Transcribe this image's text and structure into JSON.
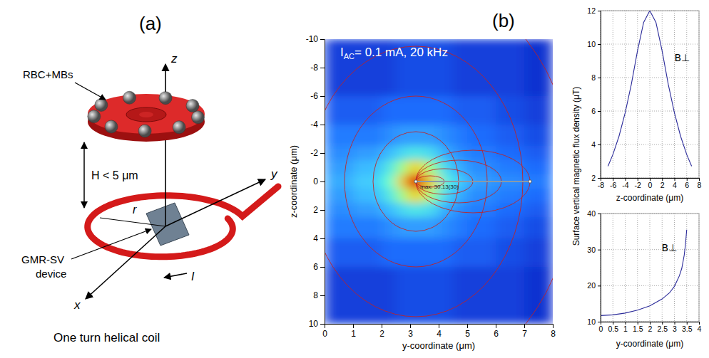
{
  "panel_labels": [
    "(a)",
    "(b)"
  ],
  "diagram": {
    "labels": {
      "cell": "RBC+MBs",
      "height": "H < 5 μm",
      "device": [
        "GMR-SV",
        "device"
      ],
      "caption": "One turn helical coil",
      "axes": [
        "x",
        "y",
        "z"
      ],
      "radius": "r",
      "current": "I"
    }
  },
  "chart_data": [
    {
      "type": "heatmap",
      "annotation": {
        "text": "I",
        "subscript": "AC",
        "rest": "= 0.1 mA, 20 kHz"
      },
      "max_label": "max: 30.13(30)",
      "xlabel": "y-coordinate (μm)",
      "ylabel": "z-coordinate (μm)",
      "xlim": [
        0,
        8
      ],
      "ylim": [
        10,
        -10
      ],
      "xticks": [
        0,
        1,
        2,
        3,
        4,
        5,
        6,
        7,
        8
      ],
      "yticks": [
        -10,
        -8,
        -6,
        -4,
        -2,
        0,
        2,
        4,
        6,
        8,
        10
      ],
      "x_edges": [
        0,
        1,
        2,
        2.5,
        2.9,
        3.5,
        4,
        4.5,
        5,
        6,
        7,
        8
      ],
      "y_edges": [
        -10,
        -6,
        -4,
        -2.5,
        -1.5,
        -0.5,
        0.5,
        1.5,
        2.5,
        4,
        6,
        10
      ],
      "cells": [
        [
          3,
          3,
          3,
          4,
          4,
          4,
          4,
          3,
          3,
          3,
          2
        ],
        [
          5,
          5,
          6,
          6,
          6,
          6,
          6,
          5,
          5,
          4,
          3
        ],
        [
          7,
          7,
          8,
          9,
          9,
          9,
          8,
          7,
          6,
          5,
          4
        ],
        [
          8,
          9,
          11,
          13,
          14,
          13,
          10,
          8,
          7,
          6,
          5
        ],
        [
          9,
          11,
          14,
          18,
          22,
          18,
          13,
          10,
          8,
          7,
          6
        ],
        [
          10,
          12,
          16,
          22,
          30,
          22,
          15,
          12,
          9,
          8,
          7
        ],
        [
          9,
          11,
          14,
          18,
          22,
          18,
          13,
          10,
          8,
          7,
          6
        ],
        [
          8,
          9,
          11,
          13,
          14,
          13,
          10,
          8,
          7,
          6,
          5
        ],
        [
          7,
          7,
          8,
          9,
          9,
          9,
          8,
          7,
          6,
          5,
          4
        ],
        [
          5,
          5,
          6,
          6,
          6,
          6,
          6,
          5,
          5,
          4,
          3
        ],
        [
          3,
          3,
          3,
          4,
          4,
          4,
          4,
          3,
          3,
          3,
          2
        ]
      ]
    },
    {
      "type": "line",
      "xlabel": "z-coordinate (μm)",
      "x": [
        -6.8,
        -6,
        -5,
        -4,
        -3,
        -2,
        -1,
        0,
        1,
        2,
        3,
        4,
        5,
        6,
        6.8
      ],
      "series": [
        {
          "name": "B⊥",
          "color": "#2b2b9a",
          "values": [
            2.7,
            3.4,
            4.5,
            5.9,
            7.6,
            9.6,
            11.3,
            12,
            11.3,
            9.6,
            7.6,
            5.9,
            4.5,
            3.4,
            2.7
          ]
        }
      ],
      "xlim": [
        -8,
        8
      ],
      "ylim": [
        2,
        12
      ],
      "xticks": [
        -8,
        -6,
        -4,
        -2,
        0,
        2,
        4,
        6,
        8
      ],
      "yticks": [
        2,
        4,
        6,
        8,
        10,
        12
      ],
      "grid": true
    },
    {
      "type": "line",
      "xlabel": "y-coordinate (μm)",
      "ylabel": "Surface vertical magnetic flux density (μT)",
      "x": [
        0,
        0.5,
        1,
        1.5,
        2,
        2.5,
        2.8,
        3,
        3.2,
        3.3,
        3.4,
        3.45,
        3.5
      ],
      "series": [
        {
          "name": "B⊥",
          "color": "#2b2b9a",
          "values": [
            11.7,
            11.9,
            12.4,
            13.2,
            14.4,
            16.3,
            18.0,
            19.8,
            22.7,
            24.8,
            28.5,
            31.5,
            35.5
          ]
        }
      ],
      "xlim": [
        0,
        4
      ],
      "ylim": [
        10,
        40
      ],
      "xticks": [
        0,
        0.5,
        1,
        1.5,
        2,
        2.5,
        3,
        3.5,
        4
      ],
      "yticks": [
        10,
        20,
        30,
        40
      ],
      "grid": true
    }
  ]
}
